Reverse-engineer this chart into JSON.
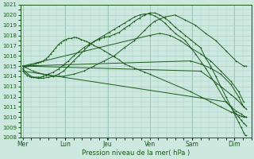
{
  "bg_color": "#cce8df",
  "grid_color": "#a8cfc4",
  "line_color": "#1a5c1a",
  "xlabel": "Pression niveau de la mer( hPa )",
  "ylim": [
    1008,
    1021
  ],
  "yticks": [
    1008,
    1009,
    1010,
    1011,
    1012,
    1013,
    1014,
    1015,
    1016,
    1017,
    1018,
    1019,
    1020,
    1021
  ],
  "day_labels": [
    "Mer",
    "Lun",
    "Jeu",
    "Ven",
    "Sam",
    "Dim"
  ],
  "day_positions": [
    0.0,
    0.83,
    1.67,
    2.5,
    3.33,
    4.17
  ],
  "xlim": [
    -0.05,
    4.5
  ],
  "lines": [
    {
      "x": [
        0.0,
        0.04,
        0.08,
        0.12,
        0.16,
        0.2,
        0.25,
        0.3,
        0.35,
        0.4,
        0.45,
        0.5,
        0.6,
        0.7,
        0.8,
        0.9,
        1.0,
        1.1,
        1.2,
        1.3,
        1.4,
        1.5,
        1.6,
        1.7,
        1.8,
        1.9,
        2.0,
        2.1,
        2.2,
        2.3,
        2.4,
        2.5,
        2.6,
        2.7,
        2.8,
        2.9,
        3.0,
        3.1,
        3.2,
        3.3,
        3.4,
        3.5,
        3.6,
        3.7,
        3.8,
        3.9,
        4.0,
        4.1,
        4.15,
        4.2,
        4.25,
        4.3,
        4.35,
        4.4
      ],
      "y": [
        1014.5,
        1014.3,
        1014.1,
        1014.0,
        1013.9,
        1013.9,
        1013.9,
        1013.9,
        1013.9,
        1014.0,
        1014.1,
        1014.2,
        1014.4,
        1014.7,
        1015.1,
        1015.5,
        1016.0,
        1016.4,
        1016.8,
        1017.1,
        1017.4,
        1017.6,
        1017.8,
        1017.9,
        1018.1,
        1018.3,
        1018.7,
        1019.0,
        1019.4,
        1019.7,
        1020.0,
        1020.2,
        1020.2,
        1020.0,
        1019.7,
        1019.3,
        1018.8,
        1018.4,
        1018.0,
        1017.6,
        1017.2,
        1016.8,
        1015.8,
        1015.0,
        1014.0,
        1013.0,
        1012.0,
        1011.0,
        1010.6,
        1010.3,
        1010.0,
        1009.7,
        1009.4,
        1009.2
      ]
    },
    {
      "x": [
        0.0,
        0.1,
        0.2,
        0.3,
        0.4,
        0.5,
        0.6,
        0.7,
        0.8,
        0.9,
        1.0,
        1.1,
        1.2,
        1.3,
        1.4,
        1.5,
        1.6,
        1.7,
        1.8,
        1.9,
        2.0,
        2.1,
        2.2,
        2.3,
        2.4,
        2.5,
        2.6,
        2.7,
        2.8,
        2.9,
        3.0,
        3.2,
        3.4,
        3.6,
        3.8,
        4.0,
        4.1,
        4.2,
        4.3,
        4.35,
        4.4
      ],
      "y": [
        1014.7,
        1014.2,
        1013.9,
        1013.8,
        1013.8,
        1013.9,
        1014.0,
        1014.2,
        1014.5,
        1015.0,
        1015.5,
        1016.0,
        1016.5,
        1017.0,
        1017.4,
        1017.7,
        1018.0,
        1018.3,
        1018.6,
        1018.9,
        1019.2,
        1019.5,
        1019.8,
        1020.0,
        1020.1,
        1020.1,
        1019.9,
        1019.6,
        1019.2,
        1018.7,
        1018.2,
        1017.5,
        1016.2,
        1014.8,
        1013.2,
        1011.5,
        1011.0,
        1010.6,
        1010.3,
        1010.1,
        1010.0
      ]
    },
    {
      "x": [
        0.0,
        0.2,
        0.4,
        0.6,
        0.8,
        1.0,
        1.2,
        1.4,
        1.6,
        1.8,
        2.0,
        2.2,
        2.4,
        2.5,
        2.6,
        2.8,
        3.0,
        3.2,
        3.4,
        3.6,
        3.8,
        4.0,
        4.2,
        4.35,
        4.4
      ],
      "y": [
        1015.0,
        1014.5,
        1014.2,
        1014.0,
        1014.0,
        1014.2,
        1014.5,
        1015.0,
        1015.5,
        1016.0,
        1016.8,
        1017.5,
        1018.5,
        1019.0,
        1019.4,
        1019.8,
        1020.0,
        1019.5,
        1019.0,
        1018.2,
        1017.5,
        1016.5,
        1015.5,
        1015.0,
        1015.0
      ]
    },
    {
      "x": [
        0.0,
        2.5,
        2.7,
        2.9,
        3.1,
        3.3,
        3.5,
        3.7,
        3.9,
        4.1,
        4.25,
        4.35
      ],
      "y": [
        1015.0,
        1018.0,
        1018.2,
        1018.0,
        1017.5,
        1016.8,
        1016.2,
        1015.5,
        1014.5,
        1013.5,
        1012.5,
        1011.5
      ]
    },
    {
      "x": [
        0.0,
        3.3,
        3.5,
        3.7,
        3.9,
        4.1,
        4.25,
        4.35
      ],
      "y": [
        1015.0,
        1015.5,
        1015.2,
        1014.8,
        1014.2,
        1013.2,
        1012.0,
        1011.0
      ]
    },
    {
      "x": [
        0.0,
        3.5,
        3.7,
        3.9,
        4.1,
        4.2,
        4.3,
        4.35,
        4.4
      ],
      "y": [
        1015.0,
        1014.5,
        1013.8,
        1013.0,
        1012.2,
        1011.8,
        1011.3,
        1011.0,
        1010.8
      ]
    },
    {
      "x": [
        0.0,
        4.0,
        4.1,
        4.15,
        4.2,
        4.25,
        4.3,
        4.35,
        4.38,
        4.4
      ],
      "y": [
        1014.5,
        1011.5,
        1011.0,
        1010.5,
        1010.0,
        1009.5,
        1009.0,
        1008.5,
        1008.2,
        1008.2
      ]
    },
    {
      "x": [
        0.0,
        0.05,
        0.1,
        0.15,
        0.2,
        0.25,
        0.3,
        0.35,
        0.4,
        0.45,
        0.5,
        0.55,
        0.6,
        0.65,
        0.7,
        0.75,
        0.8,
        0.85,
        0.9,
        0.95,
        1.0,
        1.05,
        1.1,
        1.15,
        1.2,
        1.25,
        1.3,
        1.35,
        1.4,
        1.5,
        1.6,
        1.7,
        1.8,
        1.9,
        2.0,
        2.1,
        2.2,
        2.3,
        2.4,
        2.5,
        3.3,
        3.5,
        3.7,
        3.9,
        4.1,
        4.2,
        4.25,
        4.3,
        4.35,
        4.4
      ],
      "y": [
        1014.8,
        1014.9,
        1015.0,
        1015.1,
        1015.1,
        1015.2,
        1015.3,
        1015.4,
        1015.5,
        1015.7,
        1015.9,
        1016.2,
        1016.5,
        1016.8,
        1017.1,
        1017.3,
        1017.5,
        1017.6,
        1017.7,
        1017.7,
        1017.8,
        1017.8,
        1017.7,
        1017.6,
        1017.5,
        1017.4,
        1017.3,
        1017.2,
        1017.0,
        1016.8,
        1016.5,
        1016.2,
        1015.9,
        1015.6,
        1015.2,
        1015.0,
        1014.8,
        1014.6,
        1014.4,
        1014.2,
        1012.5,
        1012.0,
        1011.5,
        1011.0,
        1010.5,
        1010.3,
        1010.2,
        1010.1,
        1010.0,
        1010.0
      ]
    }
  ]
}
